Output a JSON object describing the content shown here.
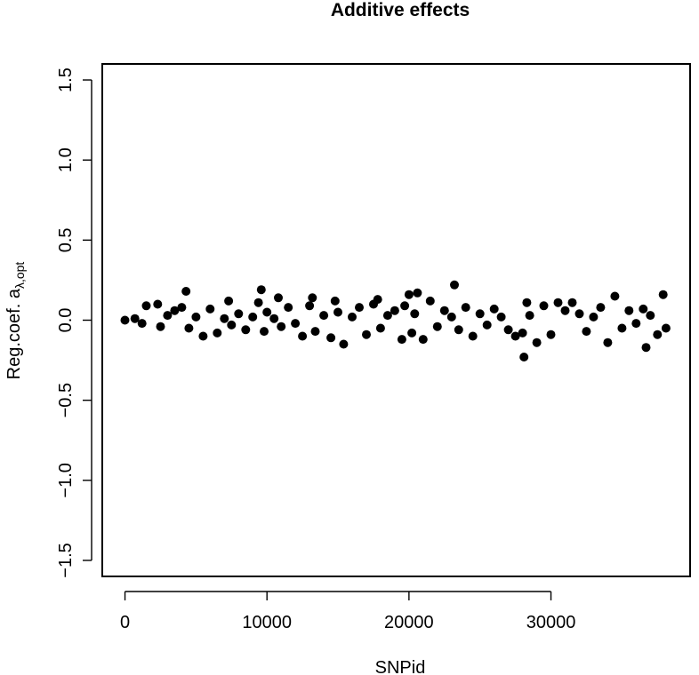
{
  "chart_data": {
    "type": "scatter",
    "title": "Additive effects",
    "xlabel": "SNPid",
    "ylabel": {
      "text": "Reg.coef. a",
      "subscript": "λ,opt"
    },
    "xlim": [
      -1600,
      39800
    ],
    "ylim": [
      -1.6,
      1.6
    ],
    "xticks": [
      0,
      10000,
      20000,
      30000
    ],
    "xtick_labels": [
      "0",
      "10000",
      "20000",
      "30000"
    ],
    "yticks": [
      -1.5,
      -1.0,
      -0.5,
      0.0,
      0.5,
      1.0,
      1.5
    ],
    "ytick_labels": [
      "−1.5",
      "−1.0",
      "−0.5",
      "0.0",
      "0.5",
      "1.0",
      "1.5"
    ],
    "grid": false,
    "legend": "none",
    "series": [
      {
        "color": "#000000",
        "x": [
          0,
          700,
          1200,
          1500,
          2300,
          2500,
          3000,
          3500,
          4000,
          4300,
          4500,
          5000,
          5500,
          6000,
          6500,
          7000,
          7300,
          7500,
          8000,
          8500,
          9000,
          9400,
          9600,
          9800,
          10000,
          10500,
          10800,
          11000,
          11500,
          12000,
          12500,
          13000,
          13200,
          13400,
          14000,
          14500,
          14800,
          15000,
          15400,
          16000,
          16500,
          17000,
          17500,
          17800,
          18000,
          18500,
          19000,
          19500,
          19700,
          20000,
          20200,
          20400,
          20600,
          21000,
          21500,
          22000,
          22500,
          23000,
          23200,
          23500,
          24000,
          24500,
          25000,
          25500,
          26000,
          26500,
          27000,
          27500,
          28000,
          28100,
          28300,
          28500,
          29000,
          29500,
          30000,
          30500,
          31000,
          31500,
          32000,
          32500,
          33000,
          33500,
          34000,
          34500,
          35000,
          35500,
          36000,
          36500,
          36700,
          37000,
          37500,
          37900,
          38100
        ],
        "y": [
          0.0,
          0.01,
          -0.02,
          0.09,
          0.1,
          -0.04,
          0.03,
          0.06,
          0.08,
          0.18,
          -0.05,
          0.02,
          -0.1,
          0.07,
          -0.08,
          0.01,
          0.12,
          -0.03,
          0.04,
          -0.06,
          0.02,
          0.11,
          0.19,
          -0.07,
          0.05,
          0.01,
          0.14,
          -0.04,
          0.08,
          -0.02,
          -0.1,
          0.09,
          0.14,
          -0.07,
          0.03,
          -0.11,
          0.12,
          0.05,
          -0.15,
          0.02,
          0.08,
          -0.09,
          0.1,
          0.13,
          -0.05,
          0.03,
          0.06,
          -0.12,
          0.09,
          0.16,
          -0.08,
          0.04,
          0.17,
          -0.12,
          0.12,
          -0.04,
          0.06,
          0.02,
          0.22,
          -0.06,
          0.08,
          -0.1,
          0.04,
          -0.03,
          0.07,
          0.02,
          -0.06,
          -0.1,
          -0.08,
          -0.23,
          0.11,
          0.03,
          -0.14,
          0.09,
          -0.09,
          0.11,
          0.06,
          0.11,
          0.04,
          -0.07,
          0.02,
          0.08,
          -0.14,
          0.15,
          -0.05,
          0.06,
          -0.02,
          0.07,
          -0.17,
          0.03,
          -0.09,
          0.16,
          -0.05
        ]
      }
    ]
  }
}
